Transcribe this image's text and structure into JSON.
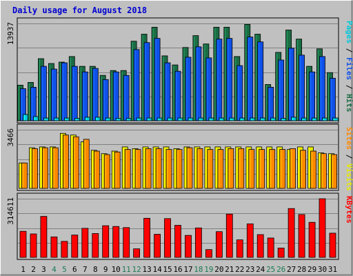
{
  "chart_data": {
    "type": "bar",
    "title": "Daily usage for August 2018",
    "categories": [
      "1",
      "2",
      "3",
      "4",
      "5",
      "6",
      "7",
      "8",
      "9",
      "10",
      "11",
      "12",
      "13",
      "14",
      "15",
      "16",
      "17",
      "18",
      "19",
      "20",
      "21",
      "22",
      "23",
      "24",
      "25",
      "26",
      "27",
      "28",
      "29",
      "30",
      "31"
    ],
    "weekend_days": [
      4,
      5,
      11,
      12,
      18,
      19,
      25,
      26
    ],
    "panels": [
      {
        "max_label": "13937",
        "ymax": 13937,
        "legend": [
          {
            "text": "Pages",
            "color": "#00c8d8"
          },
          {
            "text": " / ",
            "color": "#000000"
          },
          {
            "text": "Files",
            "color": "#1050e8"
          },
          {
            "text": " / ",
            "color": "#000000"
          },
          {
            "text": "Hits",
            "color": "#1b6c44"
          }
        ],
        "series": [
          {
            "name": "Hits",
            "color": "#1b6c44",
            "values": [
              5100,
              5500,
              8900,
              8200,
              8400,
              9200,
              7800,
              7800,
              6500,
              7200,
              7200,
              11400,
              12400,
              13400,
              9300,
              8000,
              10500,
              12200,
              11000,
              13400,
              13400,
              9200,
              13800,
              12400,
              5200,
              9800,
              13000,
              11700,
              7800,
              10300,
              6900
            ]
          },
          {
            "name": "Files",
            "color": "#1050e8",
            "values": [
              4600,
              4800,
              7800,
              7400,
              8300,
              7800,
              7000,
              7500,
              5900,
              7000,
              6500,
              10200,
              11200,
              11800,
              8300,
              7100,
              9100,
              10600,
              9000,
              11700,
              11800,
              7900,
              12000,
              11300,
              4800,
              8700,
              10400,
              9400,
              7000,
              9200,
              6100
            ]
          },
          {
            "name": "Pages",
            "color": "#00c8d8",
            "values": [
              900,
              600,
              400,
              400,
              400,
              350,
              500,
              500,
              400,
              350,
              350,
              400,
              400,
              400,
              400,
              400,
              400,
              400,
              400,
              400,
              400,
              400,
              400,
              400,
              400,
              350,
              500,
              400,
              400,
              400,
              400
            ]
          }
        ]
      },
      {
        "max_label": "3466",
        "ymax": 3466,
        "legend": [
          {
            "text": "Sites",
            "color": "#ff8800"
          },
          {
            "text": " / ",
            "color": "#000000"
          },
          {
            "text": "Visits",
            "color": "#e8e800"
          }
        ],
        "series": [
          {
            "name": "Visits",
            "color": "#e8e800",
            "values": [
              1500,
              2400,
              2450,
              2450,
              3250,
              3150,
              2750,
              2250,
              2050,
              2200,
              2450,
              2350,
              2450,
              2450,
              2450,
              2350,
              2450,
              2450,
              2450,
              2450,
              2450,
              2450,
              2450,
              2450,
              2450,
              2450,
              2300,
              2450,
              2450,
              2100,
              2050
            ]
          },
          {
            "name": "Sites",
            "color": "#ff8800",
            "values": [
              1500,
              2350,
              2400,
              2400,
              3150,
              3050,
              2900,
              2200,
              2000,
              2150,
              2300,
              2300,
              2350,
              2350,
              2300,
              2300,
              2400,
              2350,
              2300,
              2300,
              2350,
              2350,
              2300,
              2300,
              2300,
              2300,
              2350,
              2250,
              2200,
              2050,
              2000
            ]
          }
        ]
      },
      {
        "max_label": "314611",
        "ymax": 314611,
        "legend": [
          {
            "text": "KBytes",
            "color": "#ff0000"
          }
        ],
        "series": [
          {
            "name": "KBytes",
            "color": "#ff0000",
            "values": [
              140000,
              126000,
              220000,
              110000,
              86000,
              120000,
              156000,
              128000,
              170000,
              166000,
              160000,
              46000,
              210000,
              124000,
              208000,
              172000,
              118000,
              158000,
              42000,
              138000,
              232000,
              94000,
              180000,
              122000,
              104000,
              50000,
              262000,
              230000,
              188000,
              314611,
              130000
            ]
          }
        ]
      }
    ]
  }
}
